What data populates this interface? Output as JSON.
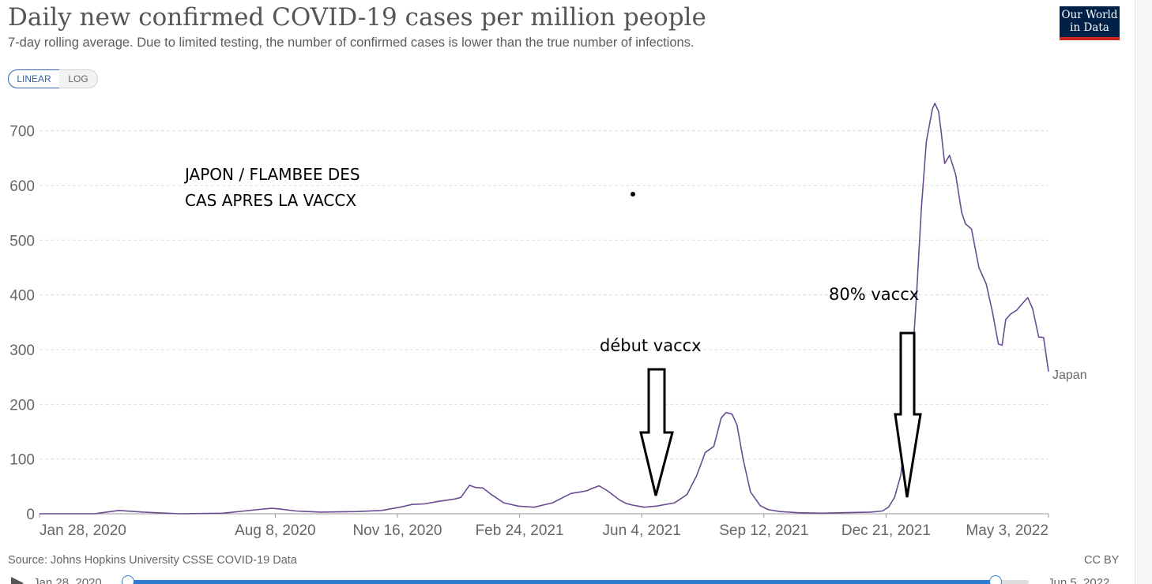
{
  "header": {
    "title": "Daily new confirmed COVID-19 cases per million people",
    "subtitle": "7-day rolling average. Due to limited testing, the number of confirmed cases is lower than the true number of infections.",
    "logo_line1": "Our World",
    "logo_line2": "in Data"
  },
  "controls": {
    "linear_label": "LINEAR",
    "log_label": "LOG"
  },
  "footer": {
    "source": "Source: Johns Hopkins University CSSE COVID-19 Data",
    "license": "CC BY"
  },
  "timeline": {
    "start_label": "Jan 28, 2020",
    "end_label": "Jun 5, 2022"
  },
  "colors": {
    "series": "#6a4c93",
    "grid": "#dddddd",
    "axis": "#999999"
  },
  "chart_data": {
    "type": "line",
    "title": "Daily new confirmed COVID-19 cases per million people",
    "xlabel": "",
    "ylabel": "",
    "ylim": [
      0,
      750
    ],
    "yticks": [
      "0",
      "100",
      "200",
      "300",
      "400",
      "500",
      "600",
      "700"
    ],
    "xtick_labels": [
      "Jan 28, 2020",
      "Aug 8, 2020",
      "Nov 16, 2020",
      "Feb 24, 2021",
      "Jun 4, 2021",
      "Sep 12, 2021",
      "Dec 21, 2021",
      "May 3, 2022"
    ],
    "xtick_days": [
      0,
      193,
      293,
      393,
      493,
      593,
      693,
      826
    ],
    "x_domain_days": [
      0,
      826
    ],
    "series": [
      {
        "name": "Japan",
        "days": [
          0,
          45,
          65,
          85,
          115,
          150,
          180,
          190,
          196,
          210,
          230,
          260,
          280,
          295,
          305,
          315,
          325,
          340,
          345,
          352,
          357,
          363,
          370,
          380,
          392,
          405,
          420,
          435,
          443,
          448,
          452,
          458,
          465,
          475,
          480,
          485,
          490,
          495,
          505,
          520,
          530,
          538,
          545,
          552,
          558,
          562,
          567,
          571,
          576,
          582,
          590,
          596,
          606,
          620,
          640,
          660,
          680,
          690,
          695,
          700,
          705,
          712,
          718,
          722,
          726,
          731,
          733,
          736,
          738,
          741,
          745,
          750,
          755,
          758,
          763,
          769,
          775,
          780,
          785,
          788,
          791,
          795,
          800,
          805,
          809,
          813,
          818,
          822,
          826
        ],
        "values": [
          0,
          0,
          6,
          3,
          0,
          1,
          8,
          10,
          9,
          5,
          3,
          4,
          6,
          12,
          17,
          18,
          22,
          27,
          30,
          52,
          48,
          47,
          35,
          20,
          14,
          12,
          20,
          37,
          40,
          42,
          46,
          51,
          42,
          25,
          19,
          16,
          14,
          12,
          14,
          20,
          35,
          70,
          112,
          123,
          175,
          185,
          182,
          162,
          100,
          40,
          15,
          8,
          4,
          2,
          1,
          2,
          3,
          5,
          12,
          30,
          70,
          190,
          400,
          560,
          680,
          740,
          750,
          735,
          700,
          640,
          655,
          620,
          550,
          530,
          520,
          450,
          420,
          370,
          310,
          308,
          355,
          365,
          372,
          385,
          395,
          375,
          323,
          322,
          260
        ]
      }
    ],
    "annotations": [
      {
        "text": "JAPON / FLAMBEE DES",
        "kind": "title"
      },
      {
        "text": "CAS APRES LA VACCX",
        "kind": "title"
      },
      {
        "text": "début vaccx",
        "kind": "arrow-label",
        "at_day": 494
      },
      {
        "text": "80% vaccx",
        "kind": "arrow-label",
        "at_day": 709
      }
    ]
  }
}
